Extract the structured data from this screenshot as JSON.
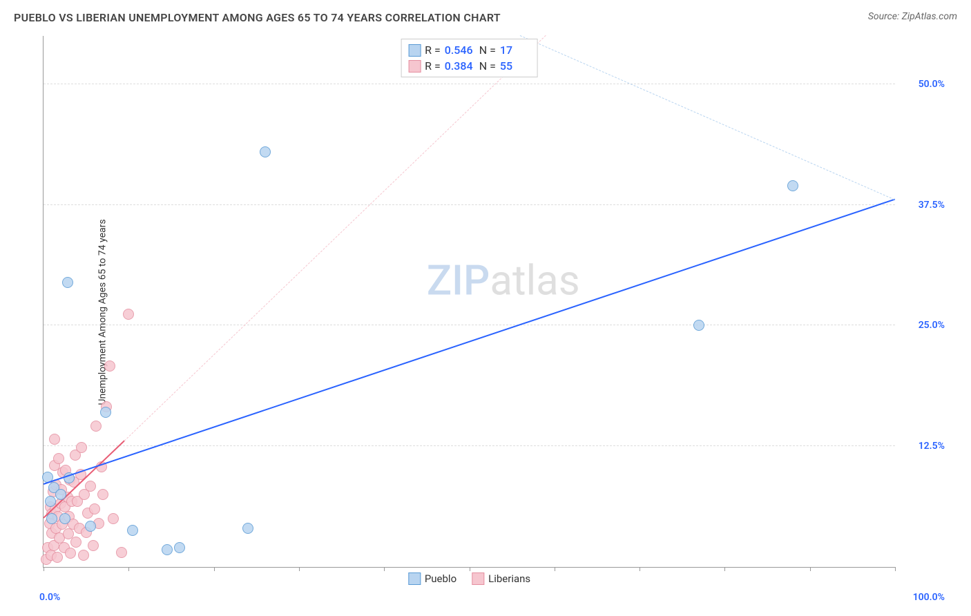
{
  "title": "PUEBLO VS LIBERIAN UNEMPLOYMENT AMONG AGES 65 TO 74 YEARS CORRELATION CHART",
  "source": "Source: ZipAtlas.com",
  "ylabel": "Unemployment Among Ages 65 to 74 years",
  "watermark": {
    "part1": "ZIP",
    "part2": "atlas"
  },
  "chart": {
    "type": "scatter",
    "background_color": "#ffffff",
    "grid_color": "#dddddd",
    "axis_color": "#999999",
    "xlim": [
      0,
      100
    ],
    "ylim": [
      0,
      55
    ],
    "x_ticks_every": 10,
    "y_gridlines": [
      12.5,
      25.0,
      37.5,
      50.0
    ],
    "y_tick_labels": [
      "12.5%",
      "25.0%",
      "37.5%",
      "50.0%"
    ],
    "y_tick_label_color": "#2962ff",
    "x_tick_labels": {
      "left": "0.0%",
      "right": "100.0%"
    },
    "x_tick_label_color": "#2962ff",
    "point_radius": 8,
    "point_border_width": 1,
    "series": [
      {
        "name": "Pueblo",
        "fill": "#b8d4f0",
        "stroke": "#5a9bd5",
        "trend_color": "#2962ff",
        "dash_color": "#b8d4f0",
        "R": "0.546",
        "N": "17",
        "trend": {
          "x1": 0,
          "y1": 8.5,
          "x2": 100,
          "y2": 38.0
        },
        "trend_dash": {
          "x1": 56,
          "y1": 55,
          "x2": 100,
          "y2": 38.0
        },
        "points": [
          {
            "x": 0.5,
            "y": 9.3
          },
          {
            "x": 0.8,
            "y": 6.8
          },
          {
            "x": 1.0,
            "y": 5.0
          },
          {
            "x": 1.2,
            "y": 8.2
          },
          {
            "x": 2.0,
            "y": 7.5
          },
          {
            "x": 2.5,
            "y": 5.0
          },
          {
            "x": 2.8,
            "y": 29.5
          },
          {
            "x": 3.0,
            "y": 9.2
          },
          {
            "x": 5.5,
            "y": 4.2
          },
          {
            "x": 7.3,
            "y": 16.0
          },
          {
            "x": 10.5,
            "y": 3.8
          },
          {
            "x": 14.5,
            "y": 1.8
          },
          {
            "x": 16.0,
            "y": 2.0
          },
          {
            "x": 24.0,
            "y": 4.0
          },
          {
            "x": 26.0,
            "y": 43.0
          },
          {
            "x": 77.0,
            "y": 25.0
          },
          {
            "x": 88.0,
            "y": 39.5
          }
        ]
      },
      {
        "name": "Liberians",
        "fill": "#f6c6cf",
        "stroke": "#e58fa0",
        "trend_color": "#e85d75",
        "dash_color": "#f6c6cf",
        "R": "0.384",
        "N": "55",
        "trend": {
          "x1": 0,
          "y1": 5.0,
          "x2": 9.5,
          "y2": 13.0
        },
        "trend_dash": {
          "x1": 9.5,
          "y1": 13.0,
          "x2": 59,
          "y2": 55
        },
        "points": [
          {
            "x": 0.3,
            "y": 0.8
          },
          {
            "x": 0.5,
            "y": 2.0
          },
          {
            "x": 0.7,
            "y": 4.5
          },
          {
            "x": 0.8,
            "y": 6.2
          },
          {
            "x": 0.9,
            "y": 1.2
          },
          {
            "x": 1.0,
            "y": 3.5
          },
          {
            "x": 1.0,
            "y": 5.5
          },
          {
            "x": 1.1,
            "y": 7.8
          },
          {
            "x": 1.2,
            "y": 2.2
          },
          {
            "x": 1.3,
            "y": 10.5
          },
          {
            "x": 1.3,
            "y": 13.2
          },
          {
            "x": 1.4,
            "y": 6.0
          },
          {
            "x": 1.5,
            "y": 4.0
          },
          {
            "x": 1.5,
            "y": 8.5
          },
          {
            "x": 1.6,
            "y": 1.0
          },
          {
            "x": 1.7,
            "y": 5.2
          },
          {
            "x": 1.8,
            "y": 11.2
          },
          {
            "x": 1.9,
            "y": 3.0
          },
          {
            "x": 2.0,
            "y": 6.6
          },
          {
            "x": 2.1,
            "y": 8.0
          },
          {
            "x": 2.2,
            "y": 4.4
          },
          {
            "x": 2.3,
            "y": 9.8
          },
          {
            "x": 2.4,
            "y": 2.0
          },
          {
            "x": 2.5,
            "y": 6.2
          },
          {
            "x": 2.6,
            "y": 10.0
          },
          {
            "x": 2.8,
            "y": 7.2
          },
          {
            "x": 2.9,
            "y": 3.4
          },
          {
            "x": 3.0,
            "y": 5.2
          },
          {
            "x": 3.1,
            "y": 9.0
          },
          {
            "x": 3.2,
            "y": 1.4
          },
          {
            "x": 3.3,
            "y": 6.8
          },
          {
            "x": 3.5,
            "y": 4.4
          },
          {
            "x": 3.6,
            "y": 8.8
          },
          {
            "x": 3.7,
            "y": 11.6
          },
          {
            "x": 3.8,
            "y": 2.6
          },
          {
            "x": 4.0,
            "y": 6.8
          },
          {
            "x": 4.2,
            "y": 4.0
          },
          {
            "x": 4.4,
            "y": 9.6
          },
          {
            "x": 4.5,
            "y": 12.4
          },
          {
            "x": 4.7,
            "y": 1.2
          },
          {
            "x": 4.8,
            "y": 7.5
          },
          {
            "x": 5.0,
            "y": 3.6
          },
          {
            "x": 5.2,
            "y": 5.6
          },
          {
            "x": 5.5,
            "y": 8.4
          },
          {
            "x": 5.8,
            "y": 2.2
          },
          {
            "x": 6.0,
            "y": 6.0
          },
          {
            "x": 6.2,
            "y": 14.6
          },
          {
            "x": 6.5,
            "y": 4.5
          },
          {
            "x": 6.8,
            "y": 10.4
          },
          {
            "x": 7.0,
            "y": 7.5
          },
          {
            "x": 7.4,
            "y": 16.6
          },
          {
            "x": 7.8,
            "y": 20.8
          },
          {
            "x": 8.2,
            "y": 5.0
          },
          {
            "x": 9.2,
            "y": 1.5
          },
          {
            "x": 10.0,
            "y": 26.2
          }
        ]
      }
    ]
  },
  "legend_bottom": [
    {
      "label": "Pueblo",
      "fill": "#b8d4f0",
      "stroke": "#5a9bd5"
    },
    {
      "label": "Liberians",
      "fill": "#f6c6cf",
      "stroke": "#e58fa0"
    }
  ]
}
